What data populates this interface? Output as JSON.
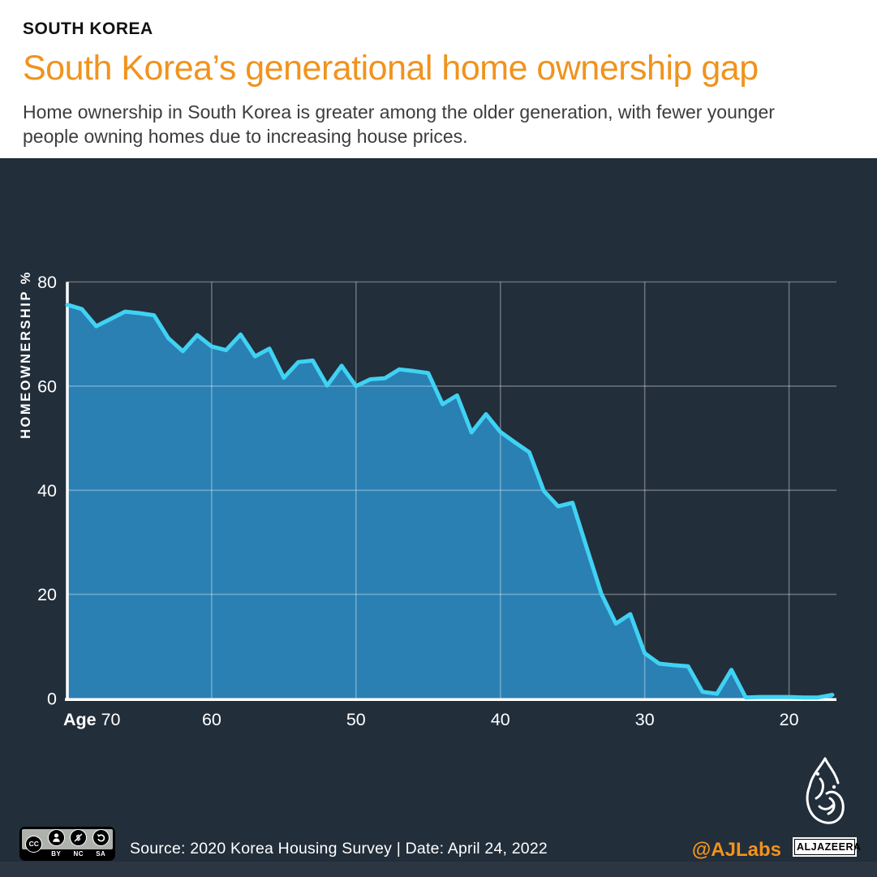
{
  "header": {
    "eyebrow": "SOUTH KOREA",
    "title": "South Korea’s generational home ownership gap",
    "subtitle": "Home ownership in South Korea is greater among the older generation, with fewer younger people owning homes due to increasing house prices."
  },
  "chart_data": {
    "type": "area",
    "title": "South Korea’s generational home ownership gap",
    "xlabel": "Age",
    "ylabel": "HOMEOWNERSHIP %",
    "x_reversed": true,
    "x": [
      70,
      69,
      68,
      67,
      66,
      65,
      64,
      63,
      62,
      61,
      60,
      59,
      58,
      57,
      56,
      55,
      54,
      53,
      52,
      51,
      50,
      49,
      48,
      47,
      46,
      45,
      44,
      43,
      42,
      41,
      40,
      39,
      38,
      37,
      36,
      35,
      34,
      33,
      32,
      31,
      30,
      29,
      28,
      27,
      26,
      25,
      24,
      23,
      22,
      21,
      20,
      19,
      18,
      17
    ],
    "values": [
      75.6,
      74.8,
      71.5,
      72.9,
      74.3,
      74.0,
      73.6,
      69.2,
      66.7,
      69.8,
      67.6,
      66.9,
      69.9,
      65.7,
      67.2,
      61.6,
      64.6,
      64.9,
      60.1,
      63.9,
      60.0,
      61.3,
      61.5,
      63.2,
      62.9,
      62.5,
      56.5,
      58.2,
      51.1,
      54.6,
      51.2,
      49.2,
      47.3,
      39.9,
      36.9,
      37.6,
      28.8,
      20.1,
      14.4,
      16.2,
      8.7,
      6.7,
      6.4,
      6.2,
      1.3,
      0.9,
      5.5,
      0.2,
      0.3,
      0.3,
      0.3,
      0.2,
      0.2,
      0.7
    ],
    "x_ticks": [
      70,
      60,
      50,
      40,
      30,
      20
    ],
    "y_ticks": [
      0,
      20,
      40,
      60,
      80
    ],
    "ylim": [
      0,
      80
    ],
    "grid": true,
    "legend": "none"
  },
  "footer": {
    "license": {
      "name": "CC BY-NC-SA",
      "cc_label": "CC",
      "labels": [
        "BY",
        "NC",
        "SA"
      ]
    },
    "source_text": "Source: 2020 Korea Housing Survey  |  Date: April 24, 2022",
    "social_handle": "@AJLabs",
    "network_logo_text": "ALJAZEERA"
  },
  "colors": {
    "accent_orange": "#f0931d",
    "chart_bg": "#222e3a",
    "area_fill": "#2a80b3",
    "line": "#3fd2f3",
    "grid": "rgba(255,255,255,0.32)",
    "axis": "#ffffff",
    "footer_strip": "#2c3643"
  }
}
